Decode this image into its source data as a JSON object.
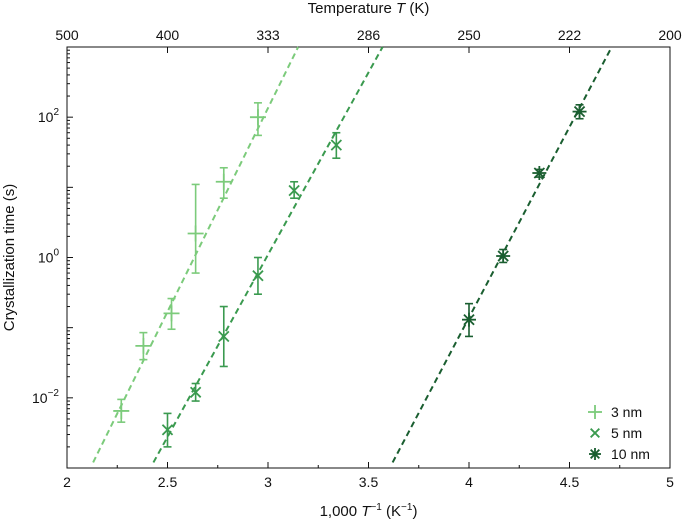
{
  "chart_data": {
    "type": "scatter",
    "title": "",
    "xlabel": "1,000 T⁻¹ (K⁻¹)",
    "xlabel_parts": {
      "prefix": "1,000 ",
      "var": "T",
      "sup": "−1",
      "units_open": " (K",
      "units_sup": "−1",
      "units_close": ")"
    },
    "ylabel": "Crystallization time (s)",
    "x2label": "Temperature T (K)",
    "x2label_parts": {
      "prefix": "Temperature ",
      "var": "T",
      "suffix": " (K)"
    },
    "xlim": [
      2,
      5
    ],
    "ylim": [
      0.001,
      1000
    ],
    "y_scale": "log",
    "xticks": [
      "2",
      "2.5",
      "3",
      "3.5",
      "4",
      "4.5",
      "5"
    ],
    "yticks": [
      {
        "value": 0.01,
        "base": "10",
        "exp": "−2"
      },
      {
        "value": 1,
        "base": "10",
        "exp": "0"
      },
      {
        "value": 100,
        "base": "10",
        "exp": "2"
      }
    ],
    "x2ticks": [
      "500",
      "400",
      "333",
      "286",
      "250",
      "222",
      "200"
    ],
    "grid": false,
    "legend_position": "bottom-right",
    "series": [
      {
        "name": "3 nm",
        "marker": "plus",
        "color": "#7ccb7b",
        "points": [
          {
            "x": 2.27,
            "y": 0.0065,
            "lo": 0.0045,
            "hi": 0.0095
          },
          {
            "x": 2.38,
            "y": 0.055,
            "lo": 0.035,
            "hi": 0.085
          },
          {
            "x": 2.52,
            "y": 0.16,
            "lo": 0.095,
            "hi": 0.26
          },
          {
            "x": 2.64,
            "y": 2.2,
            "lo": 0.6,
            "hi": 11
          },
          {
            "x": 2.78,
            "y": 12,
            "lo": 7,
            "hi": 19
          },
          {
            "x": 2.95,
            "y": 100,
            "lo": 55,
            "hi": 160
          }
        ],
        "fit": {
          "x": [
            2.13,
            3.15
          ],
          "y": [
            0.0012,
            1000
          ]
        }
      },
      {
        "name": "5 nm",
        "marker": "x",
        "color": "#3a9a4f",
        "points": [
          {
            "x": 2.5,
            "y": 0.0035,
            "lo": 0.002,
            "hi": 0.006
          },
          {
            "x": 2.64,
            "y": 0.012,
            "lo": 0.009,
            "hi": 0.016
          },
          {
            "x": 2.78,
            "y": 0.075,
            "lo": 0.028,
            "hi": 0.2
          },
          {
            "x": 2.95,
            "y": 0.55,
            "lo": 0.3,
            "hi": 1.0
          },
          {
            "x": 3.13,
            "y": 9,
            "lo": 7,
            "hi": 12
          },
          {
            "x": 3.34,
            "y": 40,
            "lo": 26,
            "hi": 60
          }
        ],
        "fit": {
          "x": [
            2.43,
            3.57
          ],
          "y": [
            0.0012,
            1000
          ]
        }
      },
      {
        "name": "10 nm",
        "marker": "asterisk",
        "color": "#1a5e30",
        "points": [
          {
            "x": 4.0,
            "y": 0.13,
            "lo": 0.075,
            "hi": 0.22
          },
          {
            "x": 4.17,
            "y": 1.05,
            "lo": 0.85,
            "hi": 1.3
          },
          {
            "x": 4.35,
            "y": 16,
            "lo": 14,
            "hi": 18
          },
          {
            "x": 4.55,
            "y": 120,
            "lo": 95,
            "hi": 150
          }
        ],
        "fit": {
          "x": [
            3.62,
            4.71
          ],
          "y": [
            0.0012,
            1000
          ]
        }
      }
    ]
  }
}
